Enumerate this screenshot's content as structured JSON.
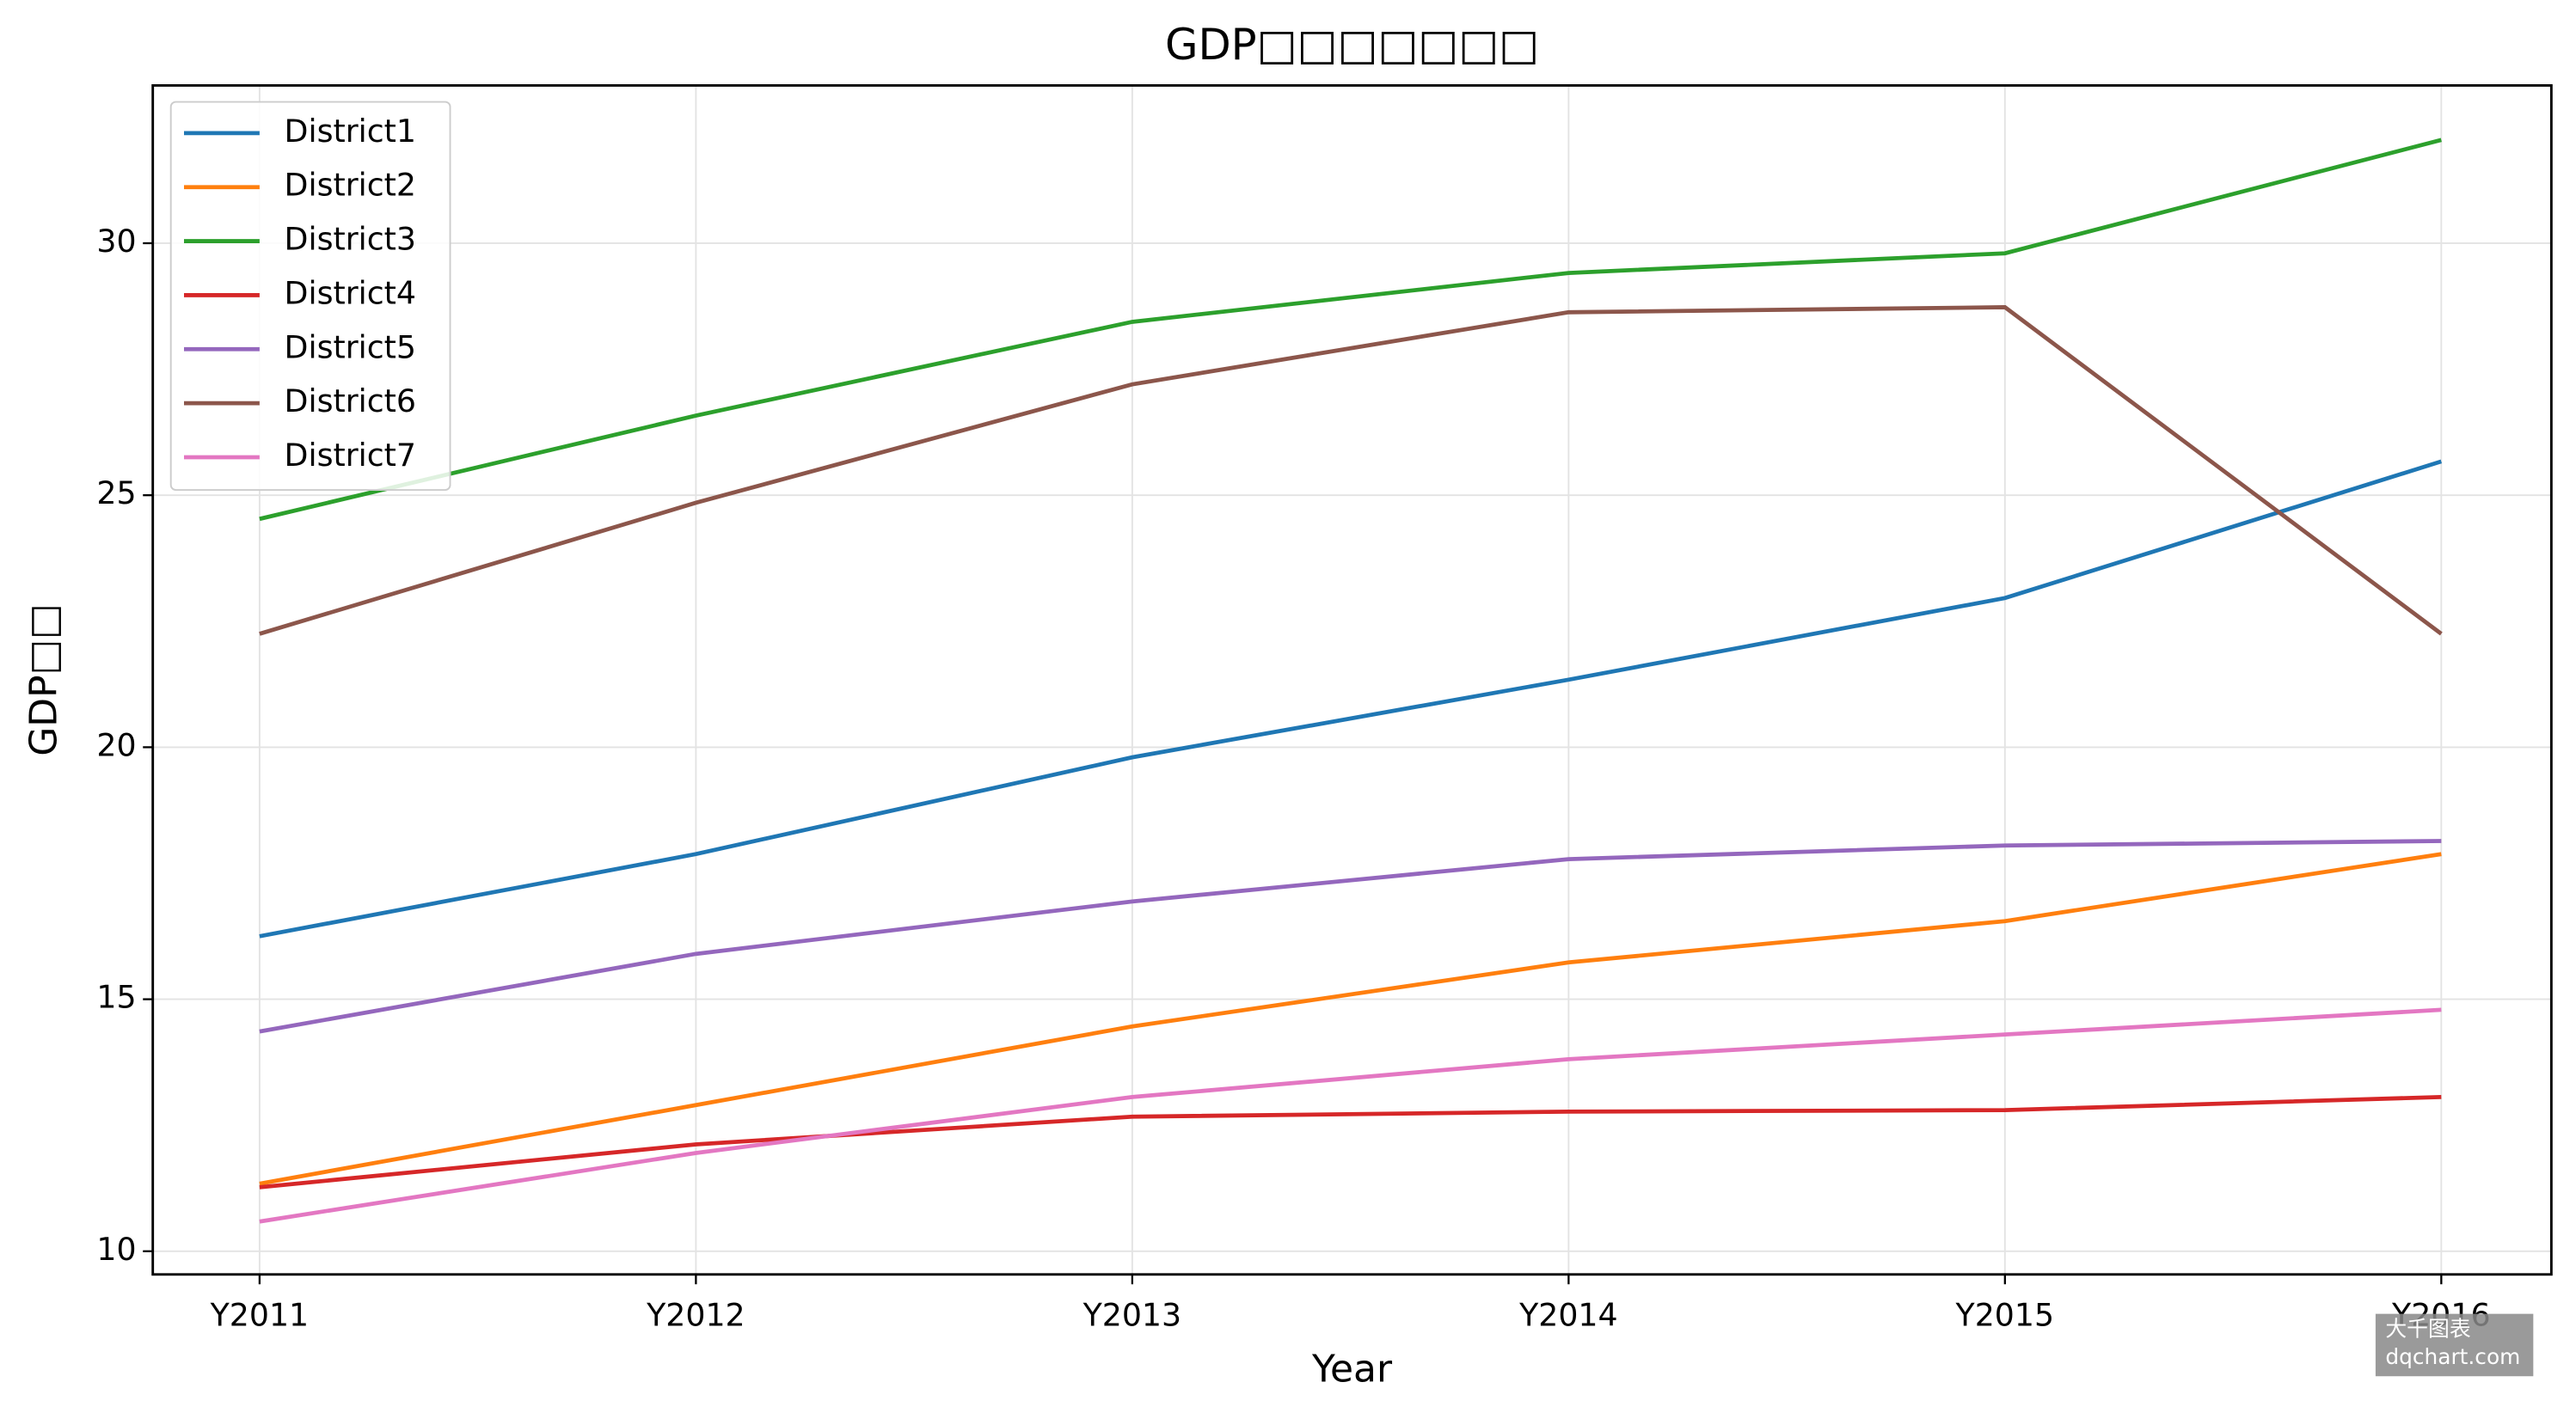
{
  "chart_data": {
    "type": "line",
    "title": "GDP□□□□□□□",
    "x_label": "Year",
    "y_label": "GDP□□",
    "categories": [
      "Y2011",
      "Y2012",
      "Y2013",
      "Y2014",
      "Y2015",
      "Y2016"
    ],
    "series": [
      {
        "name": "District1",
        "color": "#1f77b4",
        "values": [
          16.25,
          17.88,
          19.8,
          21.34,
          22.96,
          25.67
        ]
      },
      {
        "name": "District2",
        "color": "#ff7f0e",
        "values": [
          11.34,
          12.9,
          14.46,
          15.73,
          16.55,
          17.88
        ]
      },
      {
        "name": "District3",
        "color": "#2ca02c",
        "values": [
          24.53,
          26.58,
          28.44,
          29.41,
          29.8,
          32.05
        ]
      },
      {
        "name": "District4",
        "color": "#d62728",
        "values": [
          11.27,
          12.12,
          12.67,
          12.77,
          12.8,
          13.06
        ]
      },
      {
        "name": "District5",
        "color": "#9467bd",
        "values": [
          14.36,
          15.9,
          16.94,
          17.78,
          18.05,
          18.14
        ]
      },
      {
        "name": "District6",
        "color": "#8c564b",
        "values": [
          22.25,
          24.85,
          27.2,
          28.63,
          28.73,
          22.25
        ]
      },
      {
        "name": "District7",
        "color": "#e377c2",
        "values": [
          10.59,
          11.95,
          13.06,
          13.81,
          14.3,
          14.79
        ]
      }
    ],
    "ylim": [
      9.54,
      33.13
    ],
    "yticks": [
      10,
      15,
      20,
      25,
      30
    ],
    "grid": true,
    "legend": "upper-left",
    "watermark": [
      "大千图表",
      "dqchart.com"
    ]
  }
}
